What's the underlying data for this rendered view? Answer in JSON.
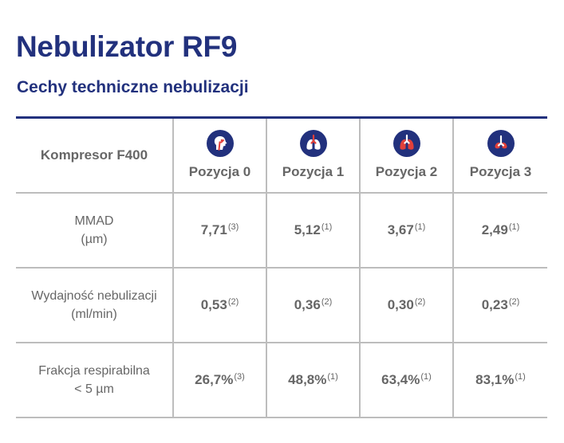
{
  "header": {
    "title": "Nebulizator RF9",
    "subtitle": "Cechy techniczne nebulizacji"
  },
  "colors": {
    "brand_blue": "#22317d",
    "icon_red": "#e2403a",
    "text_gray": "#666666",
    "grid_gray": "#bdbdbd"
  },
  "table": {
    "header_label": "Kompresor F400",
    "columns": [
      {
        "label": "Pozycja 0",
        "icon": "head-airway-icon"
      },
      {
        "label": "Pozycja 1",
        "icon": "lungs-upper-icon"
      },
      {
        "label": "Pozycja 2",
        "icon": "lungs-mid-icon"
      },
      {
        "label": "Pozycja 3",
        "icon": "lungs-deep-icon"
      }
    ],
    "rows": [
      {
        "label_line1": "MMAD",
        "label_line2": "(µm)",
        "cells": [
          {
            "value": "7,71",
            "note": "(3)"
          },
          {
            "value": "5,12",
            "note": "(1)"
          },
          {
            "value": "3,67",
            "note": "(1)"
          },
          {
            "value": "2,49",
            "note": "(1)"
          }
        ]
      },
      {
        "label_line1": "Wydajność nebulizacji",
        "label_line2": "(ml/min)",
        "cells": [
          {
            "value": "0,53",
            "note": "(2)"
          },
          {
            "value": "0,36",
            "note": "(2)"
          },
          {
            "value": "0,30",
            "note": "(2)"
          },
          {
            "value": "0,23",
            "note": "(2)"
          }
        ]
      },
      {
        "label_line1": "Frakcja respirabilna",
        "label_line2": "< 5 µm",
        "cells": [
          {
            "value": "26,7%",
            "note": "(3)"
          },
          {
            "value": "48,8%",
            "note": "(1)"
          },
          {
            "value": "63,4%",
            "note": "(1)"
          },
          {
            "value": "83,1%",
            "note": "(1)"
          }
        ]
      }
    ]
  }
}
